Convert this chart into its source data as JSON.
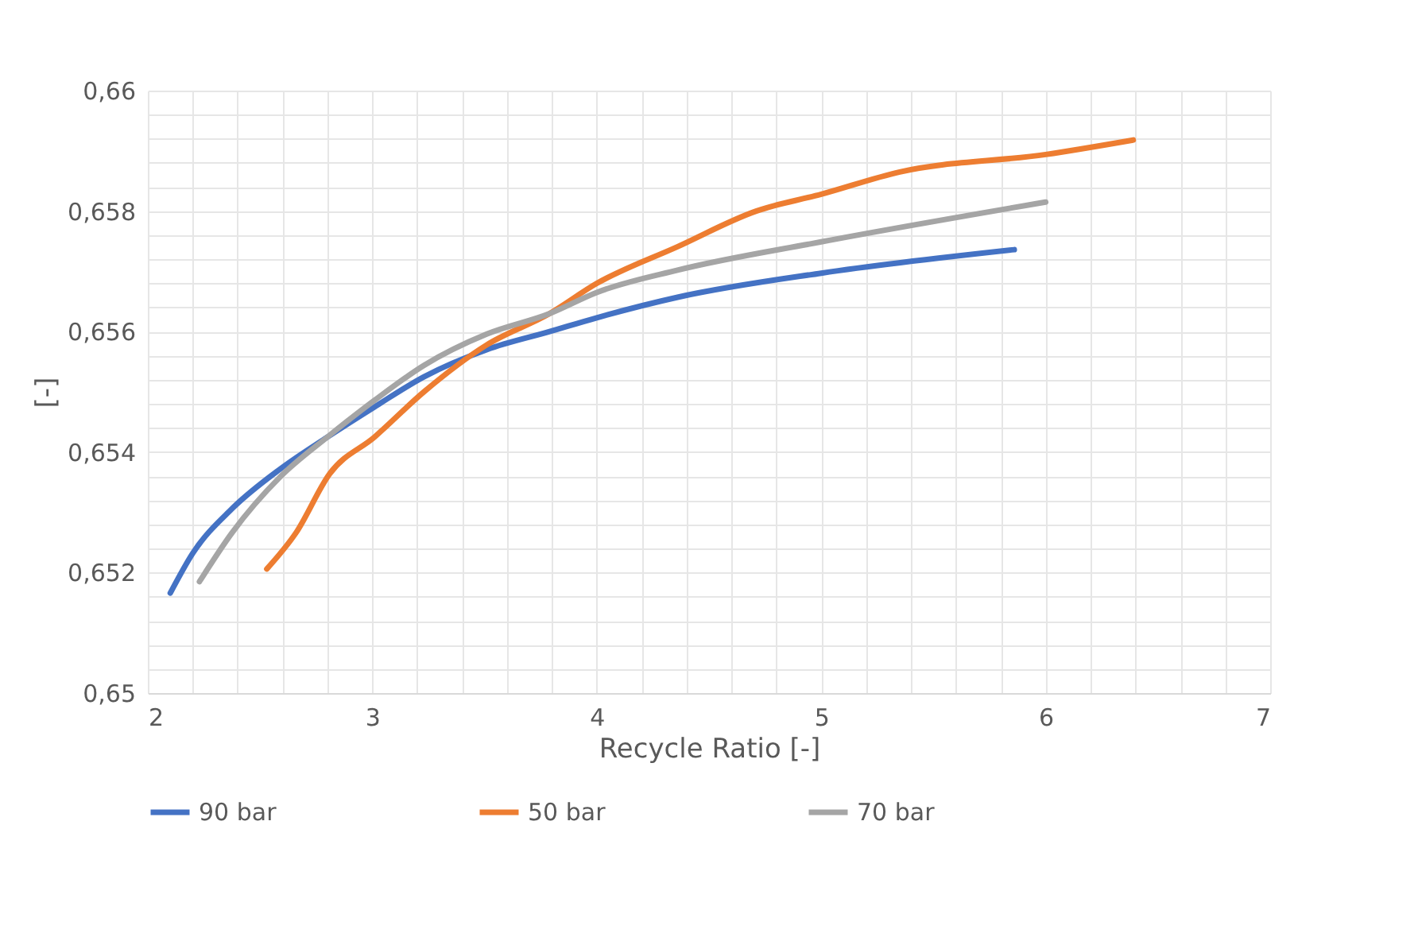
{
  "chart_data": {
    "type": "line",
    "xlabel": "Recycle Ratio [-]",
    "ylabel": "[-]",
    "xlim": [
      2,
      7
    ],
    "ylim": [
      0.65,
      0.66
    ],
    "xticks": [
      2,
      {
        "value": 2.2,
        "label": null
      },
      {
        "value": 2.4,
        "label": null
      },
      {
        "value": 2.6,
        "label": null
      },
      {
        "value": 2.8,
        "label": null
      },
      3,
      {
        "value": 3.2,
        "label": null
      },
      {
        "value": 3.4,
        "label": null
      },
      {
        "value": 3.6,
        "label": null
      },
      {
        "value": 3.8,
        "label": null
      },
      4,
      {
        "value": 4.2,
        "label": null
      },
      {
        "value": 4.4,
        "label": null
      },
      {
        "value": 4.6,
        "label": null
      },
      {
        "value": 4.8,
        "label": null
      },
      5,
      {
        "value": 5.2,
        "label": null
      },
      {
        "value": 5.4,
        "label": null
      },
      {
        "value": 5.6,
        "label": null
      },
      {
        "value": 5.8,
        "label": null
      },
      6,
      {
        "value": 6.2,
        "label": null
      },
      {
        "value": 6.4,
        "label": null
      },
      {
        "value": 6.6,
        "label": null
      },
      {
        "value": 6.8,
        "label": null
      },
      7
    ],
    "yticks": [
      {
        "value": 0.65,
        "label": "0,65"
      },
      {
        "value": 0.6504,
        "label": null
      },
      {
        "value": 0.6508,
        "label": null
      },
      {
        "value": 0.6512,
        "label": null
      },
      {
        "value": 0.6516,
        "label": null
      },
      {
        "value": 0.652,
        "label": "0,652"
      },
      {
        "value": 0.6524,
        "label": null
      },
      {
        "value": 0.6528,
        "label": null
      },
      {
        "value": 0.6532,
        "label": null
      },
      {
        "value": 0.6536,
        "label": null
      },
      {
        "value": 0.654,
        "label": "0,654"
      },
      {
        "value": 0.6544,
        "label": null
      },
      {
        "value": 0.6548,
        "label": null
      },
      {
        "value": 0.6552,
        "label": null
      },
      {
        "value": 0.6556,
        "label": null
      },
      {
        "value": 0.656,
        "label": "0,656"
      },
      {
        "value": 0.6564,
        "label": null
      },
      {
        "value": 0.6568,
        "label": null
      },
      {
        "value": 0.6572,
        "label": null
      },
      {
        "value": 0.6576,
        "label": null
      },
      {
        "value": 0.658,
        "label": "0,658"
      },
      {
        "value": 0.6584,
        "label": null
      },
      {
        "value": 0.6588,
        "label": null
      },
      {
        "value": 0.6592,
        "label": null
      },
      {
        "value": 0.6596,
        "label": null
      },
      {
        "value": 0.66,
        "label": "0,66"
      }
    ],
    "grid": true,
    "legend": "bottom",
    "marker": "none",
    "line_style": "solid",
    "series": [
      {
        "name": "90 bar",
        "color": "#4472c4",
        "x": [
          2.1,
          2.2,
          2.375,
          2.59,
          2.8,
          3.01,
          3.23,
          3.51,
          3.79,
          4.0,
          4.36,
          5.0,
          5.86
        ],
        "values": [
          0.65166,
          0.65232,
          0.65306,
          0.65372,
          0.65425,
          0.65475,
          0.65525,
          0.6557,
          0.656,
          0.65623,
          0.65657,
          0.65697,
          0.65736
        ]
      },
      {
        "name": "50 bar",
        "color": "#ed7d31",
        "x": [
          2.53,
          2.66,
          2.81,
          3.01,
          3.23,
          3.51,
          3.79,
          4.0,
          4.36,
          4.71,
          5.0,
          5.35,
          6.0,
          6.39
        ],
        "values": [
          0.65206,
          0.65266,
          0.65364,
          0.65425,
          0.655,
          0.65578,
          0.6563,
          0.6568,
          0.65741,
          0.658,
          0.65828,
          0.65865,
          0.65894,
          0.65918
        ]
      },
      {
        "name": "70 bar",
        "color": "#a5a5a5",
        "x": [
          2.23,
          2.375,
          2.59,
          2.8,
          3.01,
          3.23,
          3.51,
          3.79,
          4.0,
          4.36,
          5.0,
          6.0
        ],
        "values": [
          0.65185,
          0.65266,
          0.65359,
          0.65425,
          0.65486,
          0.65544,
          0.65596,
          0.6563,
          0.65665,
          0.65702,
          0.65749,
          0.65815
        ]
      }
    ]
  }
}
